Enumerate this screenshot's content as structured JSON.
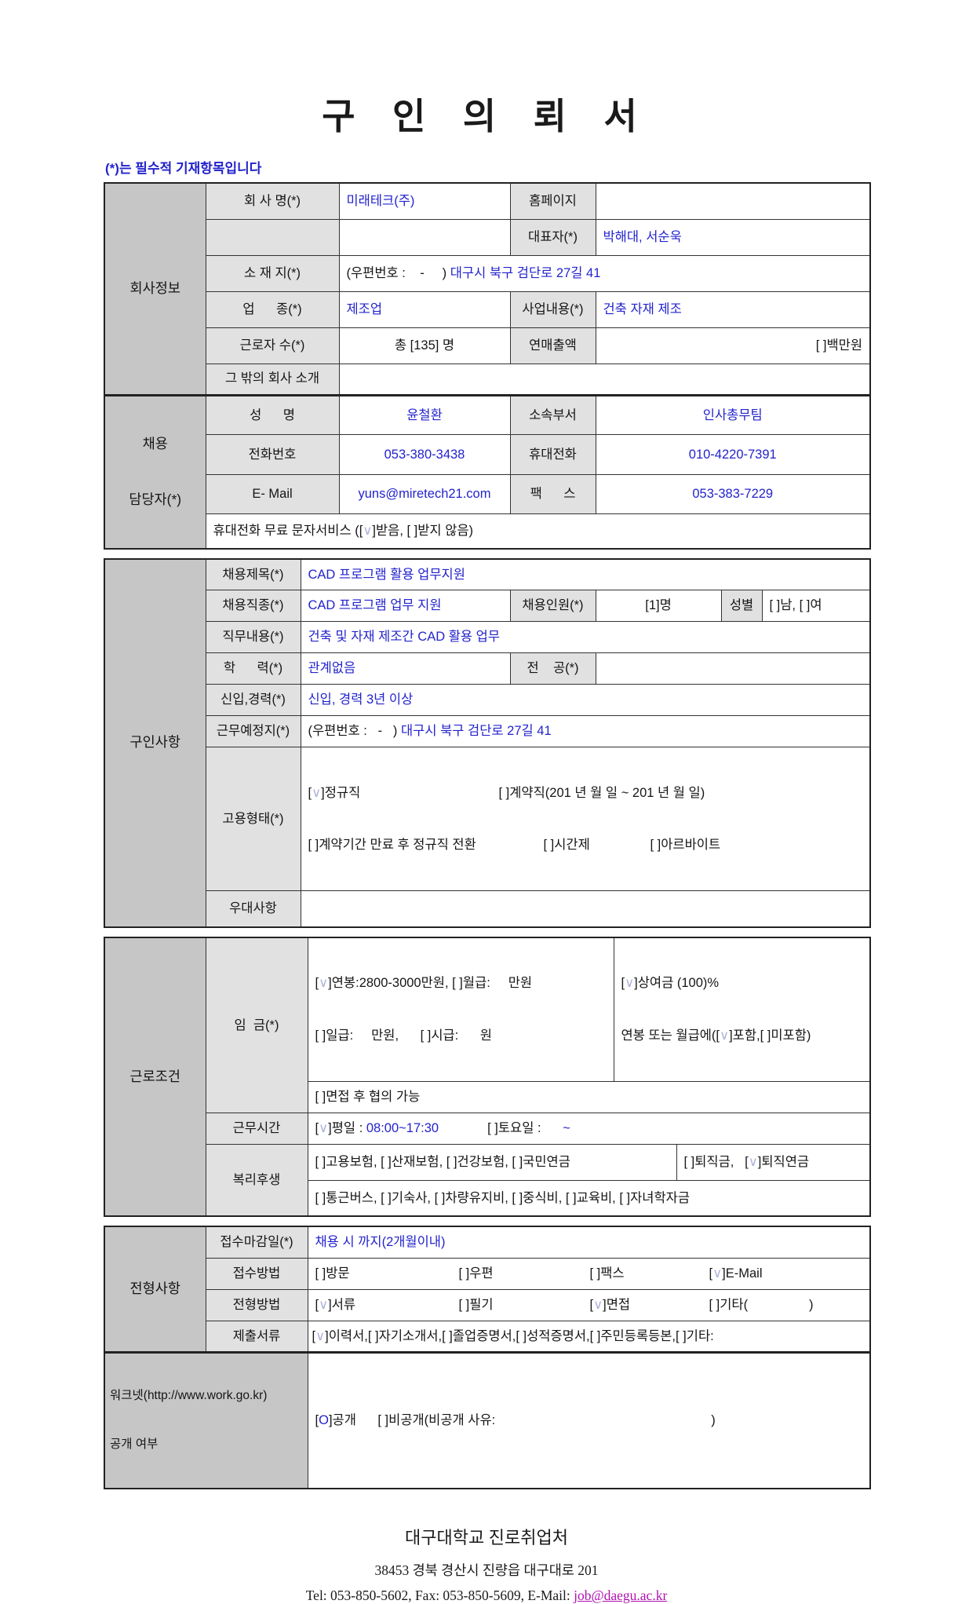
{
  "title": "구 인 의 뢰 서",
  "required_note": "(*)는 필수적 기재항목입니다",
  "colors": {
    "value_blue": "#2323cd",
    "check_mark": "#aeb4da",
    "link_magenta": "#b012b0",
    "label_bg": "#e1e1e1",
    "section_bg": "#c6c6c6"
  },
  "company": {
    "section_label": "회사정보",
    "name_label": "회 사 명(*)",
    "name_value": "미래테크(주)",
    "homepage_label": "홈페이지",
    "homepage_value": "",
    "ceo_label": "대표자(*)",
    "ceo_value": "박해대, 서순욱",
    "location_label": "소 재 지(*)",
    "location_prefix": "(우편번호 :    -     ) ",
    "location_value": "대구시 북구 검단로 27길 41",
    "industry_label": "업      종(*)",
    "industry_value": "제조업",
    "business_label": "사업내용(*)",
    "business_value": "건축 자재 제조",
    "employees_label": "근로자 수(*)",
    "employees_value": "총 [135] 명",
    "revenue_label": "연매출액",
    "revenue_value": "[ ]백만원",
    "about_label": "그 밖의 회사 소개",
    "about_value": ""
  },
  "recruiter": {
    "section_label_line1": "채용",
    "section_label_line2": "담당자(*)",
    "name_label": "성      명",
    "name_value": "윤철환",
    "dept_label": "소속부서",
    "dept_value": "인사총무팀",
    "phone_label": "전화번호",
    "phone_value": "053-380-3438",
    "mobile_label": "휴대전화",
    "mobile_value": "010-4220-7391",
    "email_label": "E- Mail",
    "email_value": "yuns@miretech21.com",
    "fax_label": "팩      스",
    "fax_value": "053-383-7229",
    "sms_note": "휴대전화 무료 문자서비스 ([∨]받음, [ ]받지 않음)"
  },
  "job": {
    "section_label": "구인사항",
    "title_label": "채용제목(*)",
    "title_value": "CAD 프로그램 활용 업무지원",
    "type_label": "채용직종(*)",
    "type_value": "CAD 프로그램 업무 지원",
    "count_label": "채용인원(*)",
    "count_value": "[1]명",
    "gender_label": "성별",
    "gender_value": "[ ]남, [ ]여",
    "duty_label": "직무내용(*)",
    "duty_value": "건축 및 자재 제조간 CAD 활용 업무",
    "education_label": "학      력(*)",
    "education_value": "관계없음",
    "major_label": "전    공(*)",
    "major_value": "",
    "career_label": "신입,경력(*)",
    "career_value": "신입, 경력 3년 이상",
    "workplace_label": "근무예정지(*)",
    "workplace_prefix": "(우편번호 :   -   ) ",
    "workplace_value": "대구시 북구 검단로 27길 41",
    "employment_label": "고용형태(*)",
    "employment_opt_regular": "[∨]정규직",
    "employment_opt_contract": "[ ]계약직(201 년 월 일 ~ 201 년 월 일)",
    "employment_opt_convert": "[ ]계약기간 만료 후 정규직 전환",
    "employment_opt_parttime": "[ ]시간제",
    "employment_opt_arbeit": "[ ]아르바이트",
    "preference_label": "우대사항",
    "preference_value": ""
  },
  "conditions": {
    "section_label": "근로조건",
    "salary_label": "임  금(*)",
    "salary_line1": "[∨]연봉:2800-3000만원, [ ]월급:     만원",
    "salary_line2": "[ ]일급:     만원,      [ ]시급:      원",
    "bonus_line1": "[∨]상여금 (100)%",
    "bonus_line2": "연봉 또는 월급에([∨]포함,[ ]미포함)",
    "salary_negotiable": "[ ]면접 후 협의 가능",
    "worktime_label": "근무시간",
    "worktime_weekday": "[∨]평일 : ",
    "worktime_weekday_time": "08:00~17:30",
    "worktime_saturday": "[ ]토요일 :  ",
    "worktime_saturday_time": "    ~",
    "welfare_label": "복리후생",
    "welfare_insurance": "[ ]고용보험, [ ]산재보험, [ ]건강보험, [ ]국민연금",
    "welfare_pension": "[ ]퇴직금,   [∨]퇴직연금",
    "welfare_etc": "[ ]통근버스, [ ]기숙사, [ ]차량유지비, [ ]중식비, [ ]교육비, [ ]자녀학자금"
  },
  "screening": {
    "section_label": "전형사항",
    "deadline_label": "접수마감일(*)",
    "deadline_value": "채용 시 까지(2개월이내)",
    "apply_label": "접수방법",
    "apply_opts": [
      "[ ]방문",
      "[ ]우편",
      "[ ]팩스",
      "[∨]E-Mail"
    ],
    "method_label": "전형방법",
    "method_opts": [
      "[∨]서류",
      "[ ]필기",
      "[∨]면접",
      "[ ]기타(                 )"
    ],
    "docs_label": "제출서류",
    "docs_value": "[∨]이력서,[ ]자기소개서,[ ]졸업증명서,[ ]성적증명서,[ ]주민등록등본,[ ]기타:"
  },
  "worknet": {
    "label_line1": "워크넷(http://www.work.go.kr)",
    "label_line2": "공개 여부",
    "value": "[O]공개      [ ]비공개(비공개 사유:                                                            )"
  },
  "footer": {
    "org": "대구대학교 진로취업처",
    "address": "38453 경북 경산시 진량읍 대구대로 201",
    "contact_prefix": "Tel: 053-850-5602, Fax: 053-850-5609, E-Mail: ",
    "email": "job@daegu.ac.kr"
  }
}
